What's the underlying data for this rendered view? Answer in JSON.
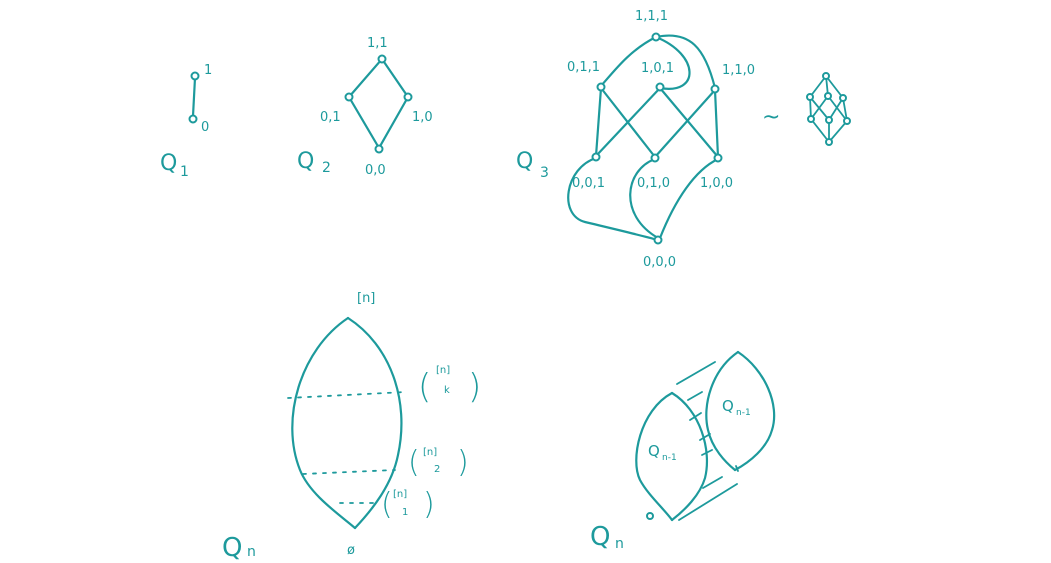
{
  "q1": {
    "name": "Q",
    "sub": "1",
    "top": "1",
    "bottom": "0"
  },
  "q2": {
    "name": "Q",
    "sub": "2",
    "top": "1,1",
    "left": "0,1",
    "right": "1,0",
    "bottom": "0,0"
  },
  "q3": {
    "name": "Q",
    "sub": "3",
    "top": "1,1,1",
    "mid_top": [
      "0,1,1",
      "1,0,1",
      "1,1,0"
    ],
    "mid_bottom": [
      "0,0,1",
      "0,1,0",
      "1,0,0"
    ],
    "bottom": "0,0,0",
    "similar": "~"
  },
  "qn_levels": {
    "name": "Q",
    "sub": "n",
    "top": "[n]",
    "bottom": "ø",
    "binomials": [
      {
        "top": "[n]",
        "bottom": "k"
      },
      {
        "top": "[n]",
        "bottom": "2"
      },
      {
        "top": "[n]",
        "bottom": "1"
      }
    ]
  },
  "qn_recursive": {
    "name": "Q",
    "sub": "n",
    "part_name": "Q",
    "part_sub": "n-1"
  }
}
